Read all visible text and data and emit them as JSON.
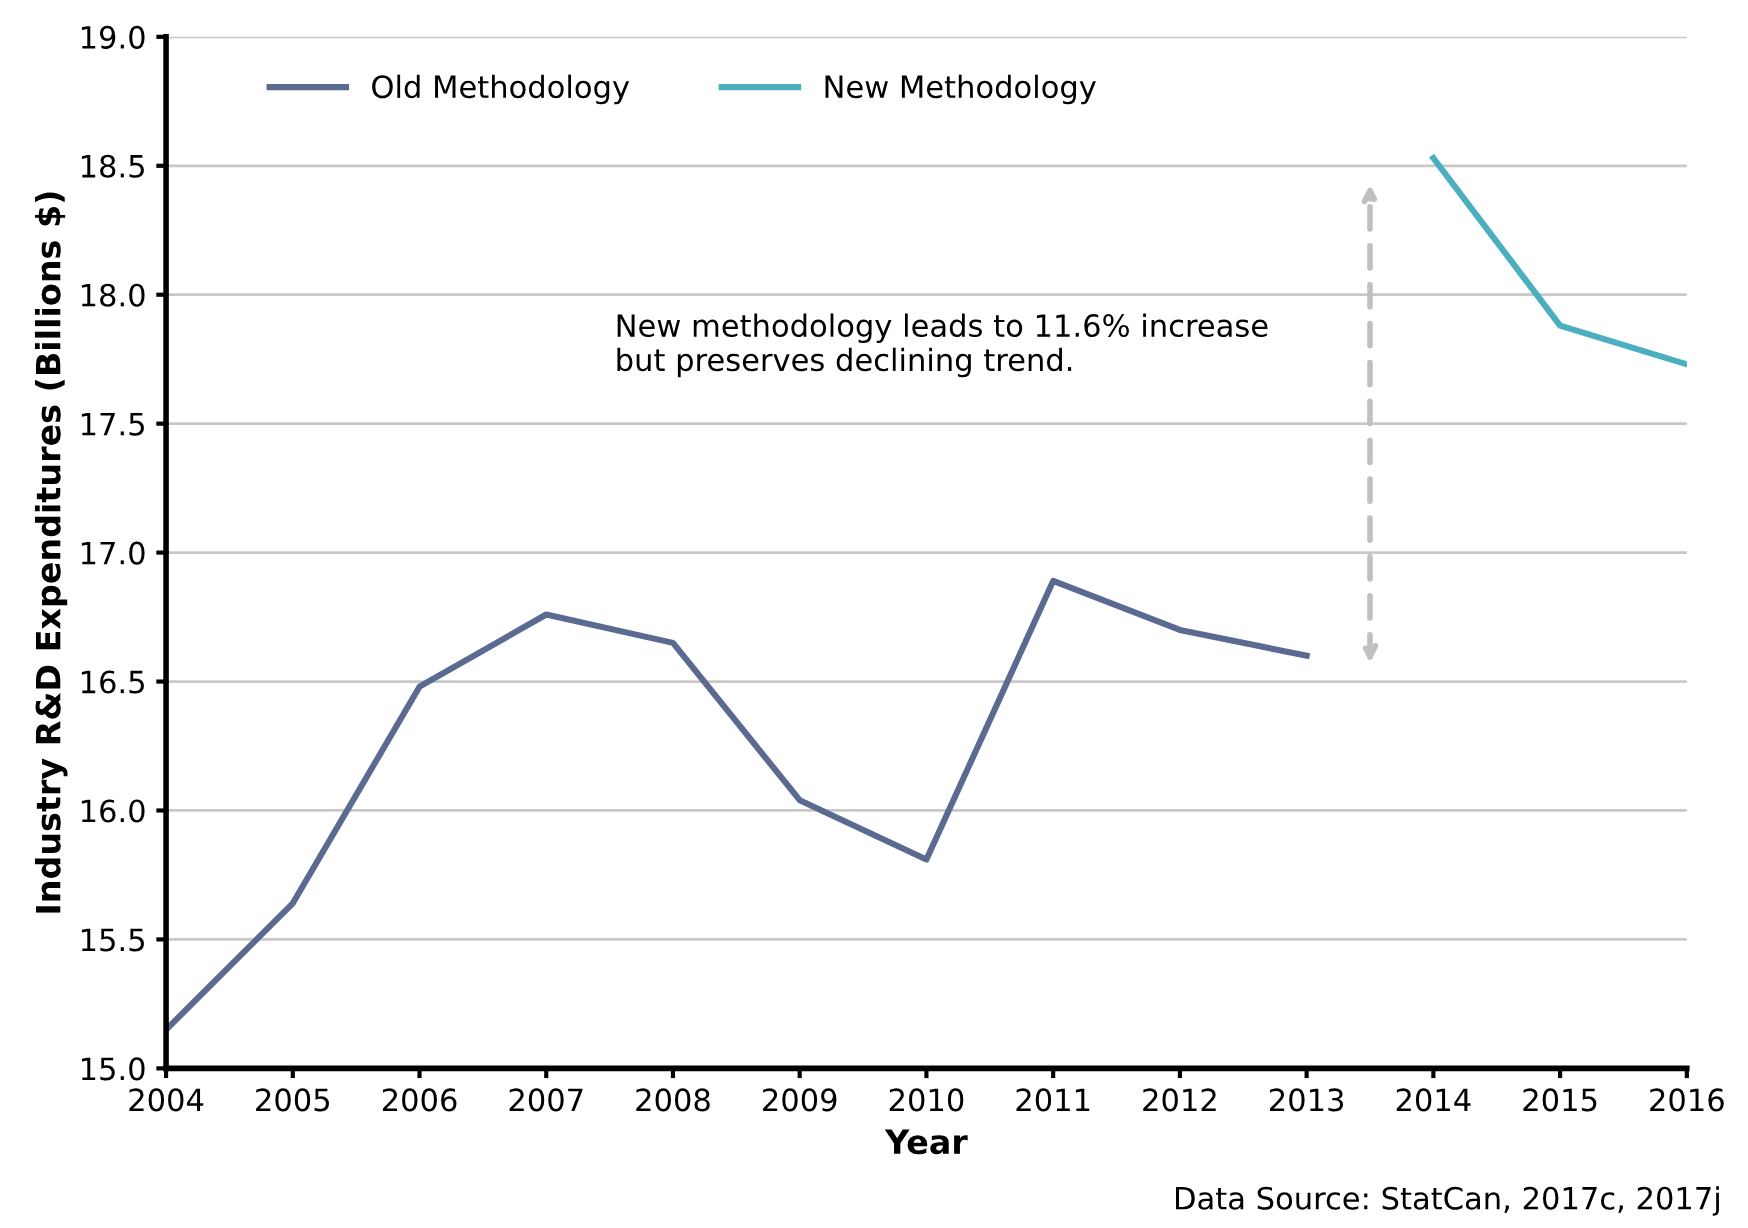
{
  "chart_data": {
    "type": "line",
    "xlabel": "Year",
    "ylabel": "Industry R&D Expenditures (Billions $)",
    "xlim": [
      2004,
      2016
    ],
    "xticks": [
      2004,
      2005,
      2006,
      2007,
      2008,
      2009,
      2010,
      2011,
      2012,
      2013,
      2014,
      2015,
      2016
    ],
    "ylim": [
      15.0,
      19.0
    ],
    "yticks": [
      {
        "value": 15.0,
        "label": "15.0"
      },
      {
        "value": 15.5,
        "label": "15.5"
      },
      {
        "value": 16.0,
        "label": "16.0"
      },
      {
        "value": 16.5,
        "label": "16.5"
      },
      {
        "value": 17.0,
        "label": "17.0"
      },
      {
        "value": 17.5,
        "label": "17.5"
      },
      {
        "value": 18.0,
        "label": "18.0"
      },
      {
        "value": 18.5,
        "label": "18.5"
      },
      {
        "value": 19.0,
        "label": "19.0"
      }
    ],
    "grid": "y",
    "legend": "top left",
    "marker": "none",
    "line_style": "solid",
    "series": [
      {
        "name": "Old Methodology",
        "color": "#5a6a91",
        "x": [
          2004,
          2005,
          2006,
          2007,
          2008,
          2009,
          2010,
          2011,
          2012,
          2013
        ],
        "values": [
          15.15,
          15.64,
          16.48,
          16.76,
          16.65,
          16.04,
          15.81,
          16.89,
          16.7,
          16.6
        ]
      },
      {
        "name": "New Methodology",
        "color": "#4bafc0",
        "x": [
          2014,
          2015,
          2016
        ],
        "values": [
          18.53,
          17.88,
          17.73
        ]
      }
    ],
    "annotations": [
      "New methodology leads to 11.6% increase\nbut preserves declining trend.",
      "Data Source: StatCan, 2017c, 2017j"
    ]
  }
}
